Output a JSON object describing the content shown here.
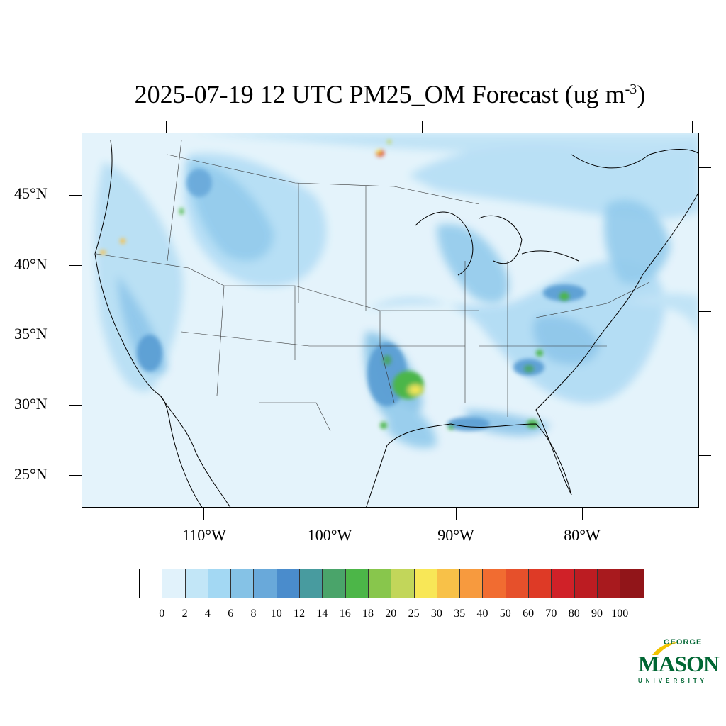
{
  "title": {
    "main": "2025-07-19 12 UTC PM25_OM Forecast (ug m",
    "exponent": "-3",
    "closing": ")"
  },
  "axes": {
    "latitude_labels": [
      "45°N",
      "40°N",
      "35°N",
      "30°N",
      "25°N"
    ],
    "longitude_labels": [
      "110°W",
      "100°W",
      "90°W",
      "80°W"
    ]
  },
  "colorbar": {
    "labels": [
      "0",
      "2",
      "4",
      "6",
      "8",
      "10",
      "12",
      "14",
      "16",
      "18",
      "20",
      "25",
      "30",
      "35",
      "40",
      "50",
      "60",
      "70",
      "80",
      "90",
      "100"
    ],
    "colors": [
      "#ffffff",
      "#e1f2fb",
      "#c2e6f7",
      "#a3d8f3",
      "#85c2e6",
      "#69a9da",
      "#4a8ccc",
      "#489b9f",
      "#4aa46a",
      "#4cb648",
      "#88c64c",
      "#c2d65a",
      "#f8e757",
      "#f8c148",
      "#f79a3e",
      "#f16c31",
      "#e6502b",
      "#de3a26",
      "#d02128",
      "#bc1c22",
      "#a81a1e",
      "#911519"
    ]
  },
  "logo": {
    "line1": "GEORGE",
    "line2": "MASON",
    "line3": "UNIVERSITY",
    "color": "#006633",
    "accent": "#f2c400"
  }
}
